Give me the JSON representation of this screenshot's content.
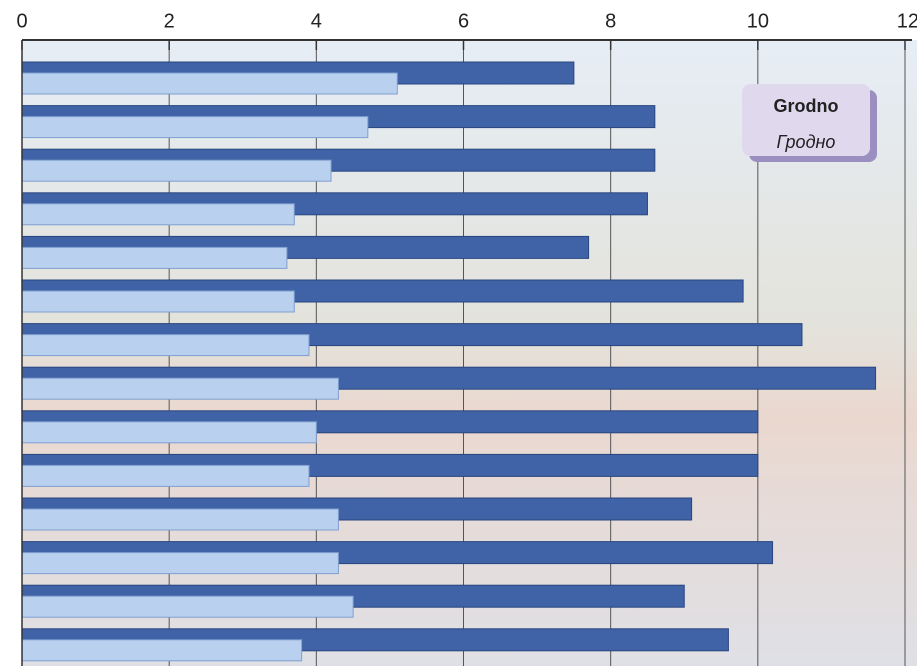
{
  "chart_data": {
    "type": "hbar",
    "title": "Grodno",
    "subtitle": "Гродно",
    "categories": [
      null,
      null,
      null,
      null,
      null,
      null,
      null,
      null,
      null,
      null,
      null,
      null,
      null,
      null
    ],
    "series": [
      {
        "color": "#3f63a6",
        "values": [
          7.5,
          8.6,
          8.6,
          8.5,
          7.7,
          9.8,
          10.6,
          11.6,
          10.0,
          10.0,
          9.1,
          10.2,
          9.0,
          9.6
        ]
      },
      {
        "color": "#b9d0ee",
        "values": [
          5.1,
          4.7,
          4.2,
          3.7,
          3.6,
          3.7,
          3.9,
          4.3,
          4.0,
          3.9,
          4.3,
          4.3,
          4.5,
          3.8
        ]
      }
    ],
    "xlim": [
      0,
      12
    ],
    "xticks": [
      0,
      2,
      4,
      6,
      8,
      10,
      12
    ],
    "grid": true
  }
}
